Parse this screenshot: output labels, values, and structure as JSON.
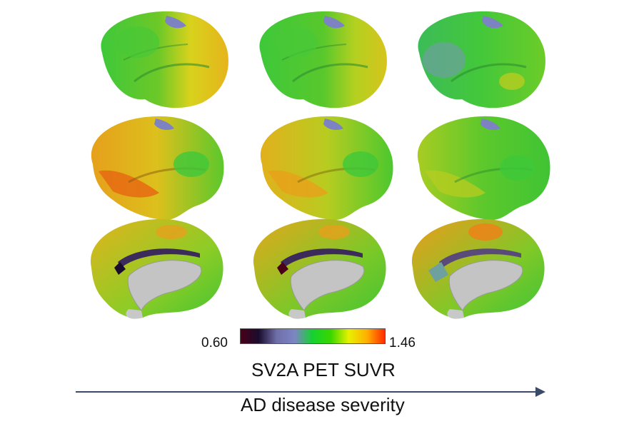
{
  "colorbar": {
    "min_label": "0.60",
    "max_label": "1.46",
    "title": "SV2A PET SUVR",
    "stops": [
      "#4a0018",
      "#1a0c2e",
      "#6e6ea8",
      "#7c86c4",
      "#14d22e",
      "#3ad600",
      "#e8f000",
      "#ffb000",
      "#ff2a00"
    ]
  },
  "axis": {
    "label": "AD disease severity",
    "color": "#3b4a66"
  },
  "panel_views": [
    "lateral",
    "lateral",
    "medial"
  ],
  "severity_stages": 3
}
